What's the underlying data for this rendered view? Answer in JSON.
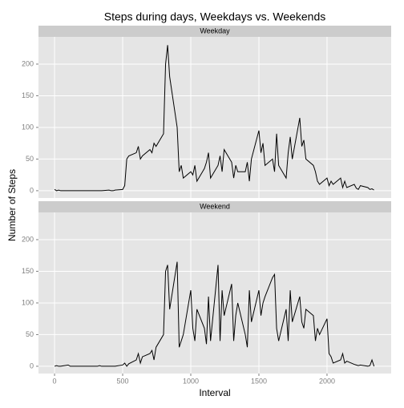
{
  "chart_data": {
    "type": "line",
    "title": "Steps during days, Weekdays vs. Weekends",
    "x_label": "Interval",
    "y_label": "Number of Steps",
    "facet": true,
    "grid": true,
    "xlim": [
      -118,
      2471
    ],
    "xticks": [
      0,
      500,
      1000,
      1500,
      2000
    ],
    "ylim": [
      -11.5,
      243
    ],
    "yticks": [
      0,
      50,
      100,
      150,
      200
    ],
    "x": [
      0,
      15,
      30,
      45,
      100,
      115,
      130,
      145,
      200,
      215,
      230,
      245,
      300,
      315,
      330,
      345,
      400,
      415,
      430,
      445,
      500,
      515,
      530,
      545,
      600,
      615,
      630,
      645,
      700,
      715,
      730,
      745,
      800,
      815,
      830,
      845,
      900,
      915,
      930,
      945,
      1000,
      1015,
      1030,
      1045,
      1100,
      1115,
      1130,
      1145,
      1200,
      1215,
      1230,
      1245,
      1300,
      1315,
      1330,
      1345,
      1400,
      1415,
      1430,
      1445,
      1500,
      1515,
      1530,
      1545,
      1600,
      1615,
      1630,
      1645,
      1700,
      1715,
      1730,
      1745,
      1800,
      1815,
      1830,
      1845,
      1900,
      1915,
      1930,
      1945,
      2000,
      2015,
      2030,
      2045,
      2100,
      2115,
      2130,
      2145,
      2200,
      2215,
      2230,
      2245,
      2300,
      2315,
      2330,
      2345
    ],
    "series": [
      {
        "name": "Weekday",
        "color": "#000000",
        "values": [
          2,
          0,
          1,
          0,
          0,
          0,
          0,
          0,
          0,
          0,
          0,
          0,
          0,
          0,
          0,
          0,
          1,
          0,
          0,
          1,
          2,
          8,
          50,
          55,
          60,
          70,
          50,
          55,
          65,
          60,
          75,
          70,
          90,
          200,
          230,
          180,
          100,
          30,
          40,
          20,
          30,
          25,
          40,
          15,
          35,
          45,
          60,
          20,
          40,
          55,
          30,
          65,
          45,
          20,
          40,
          30,
          30,
          45,
          15,
          50,
          95,
          60,
          75,
          40,
          50,
          30,
          90,
          40,
          20,
          60,
          85,
          50,
          115,
          70,
          80,
          50,
          40,
          30,
          15,
          10,
          20,
          8,
          15,
          10,
          20,
          5,
          15,
          5,
          10,
          4,
          2,
          8,
          5,
          2,
          3,
          1
        ]
      },
      {
        "name": "Weekend",
        "color": "#000000",
        "values": [
          0,
          1,
          0,
          0,
          2,
          0,
          0,
          0,
          0,
          0,
          0,
          0,
          0,
          0,
          1,
          0,
          0,
          0,
          0,
          0,
          2,
          5,
          0,
          4,
          10,
          20,
          5,
          15,
          20,
          25,
          10,
          30,
          50,
          150,
          160,
          90,
          165,
          30,
          40,
          50,
          120,
          60,
          40,
          90,
          60,
          35,
          110,
          40,
          160,
          40,
          120,
          80,
          130,
          40,
          80,
          100,
          50,
          30,
          120,
          70,
          120,
          80,
          100,
          110,
          140,
          145,
          60,
          40,
          90,
          40,
          120,
          70,
          110,
          70,
          60,
          90,
          80,
          40,
          60,
          50,
          75,
          20,
          15,
          5,
          10,
          20,
          5,
          8,
          3,
          2,
          1,
          2,
          0,
          1,
          10,
          0
        ]
      }
    ]
  }
}
